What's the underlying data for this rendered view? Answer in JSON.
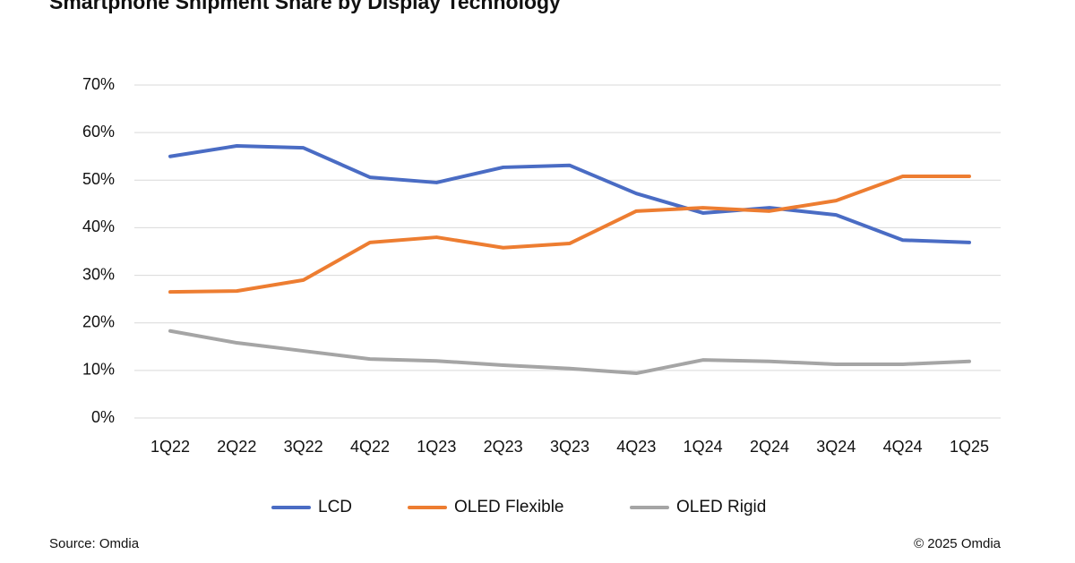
{
  "chart_data": {
    "type": "line",
    "title": "Smartphone Shipment Share by Display Technology",
    "categories": [
      "1Q22",
      "2Q22",
      "3Q22",
      "4Q22",
      "1Q23",
      "2Q23",
      "3Q23",
      "4Q23",
      "1Q24",
      "2Q24",
      "3Q24",
      "4Q24",
      "1Q25"
    ],
    "series": [
      {
        "name": "LCD",
        "color": "#4a6cc4",
        "values": [
          55.0,
          57.2,
          56.8,
          50.6,
          49.5,
          52.7,
          53.1,
          47.2,
          43.1,
          44.2,
          42.7,
          37.4,
          36.9
        ]
      },
      {
        "name": "OLED Flexible",
        "color": "#ed7d31",
        "values": [
          26.5,
          26.7,
          29.0,
          36.9,
          38.0,
          35.8,
          36.7,
          43.5,
          44.2,
          43.5,
          45.7,
          50.8,
          50.8
        ]
      },
      {
        "name": "OLED Rigid",
        "color": "#a5a5a5",
        "values": [
          18.3,
          15.8,
          14.1,
          12.4,
          12.0,
          11.1,
          10.4,
          9.4,
          12.2,
          11.9,
          11.3,
          11.3,
          11.9
        ]
      }
    ],
    "ylim": [
      0,
      70
    ],
    "yticks": [
      {
        "value": 0,
        "label": "0%"
      },
      {
        "value": 10,
        "label": "10%"
      },
      {
        "value": 20,
        "label": "20%"
      },
      {
        "value": 30,
        "label": "30%"
      },
      {
        "value": 40,
        "label": "40%"
      },
      {
        "value": 50,
        "label": "50%"
      },
      {
        "value": 60,
        "label": "60%"
      },
      {
        "value": 70,
        "label": "70%"
      }
    ],
    "grid": true,
    "legend": "bottom",
    "source": "Source: Omdia",
    "credit": "© 2025 Omdia"
  }
}
